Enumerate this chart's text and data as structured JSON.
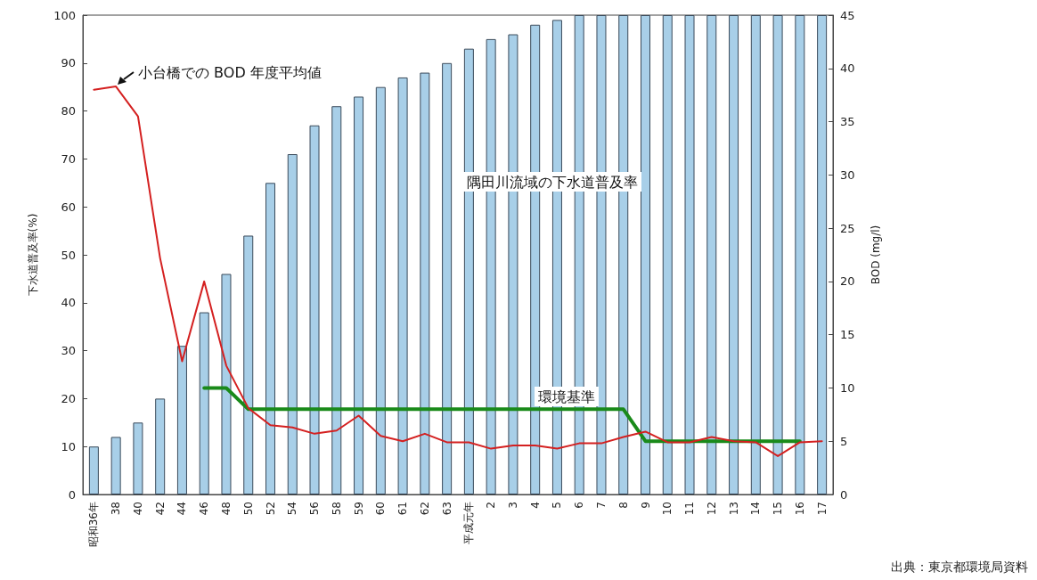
{
  "chart_data": {
    "type": "bar",
    "ylabel": "下水道普及率(%)",
    "y2label": "BOD (mg/l)",
    "categories": [
      "昭和36年",
      "38",
      "40",
      "42",
      "44",
      "46",
      "48",
      "50",
      "52",
      "54",
      "56",
      "58",
      "59",
      "60",
      "61",
      "62",
      "63",
      "平成元年",
      "2",
      "3",
      "4",
      "5",
      "6",
      "7",
      "8",
      "9",
      "10",
      "11",
      "12",
      "13",
      "14",
      "15",
      "16",
      "17"
    ],
    "series": [
      {
        "name": "隅田川流域の下水道普及率",
        "color": "#a8cfe8",
        "values": [
          10,
          12,
          15,
          20,
          31,
          38,
          46,
          54,
          65,
          71,
          77,
          81,
          83,
          85,
          87,
          88,
          90,
          93,
          95,
          96,
          98,
          99,
          100,
          100,
          100,
          100,
          100,
          100,
          100,
          100,
          100,
          100,
          100,
          100
        ]
      },
      {
        "name": "小台橋での BOD 年度平均値",
        "type": "line",
        "axis": "y2",
        "color": "#d42020",
        "values": [
          38,
          38.3,
          35.5,
          22.2,
          12.5,
          20,
          12.1,
          8.1,
          6.5,
          6.3,
          5.7,
          6,
          7.4,
          5.5,
          5,
          5.7,
          4.9,
          4.9,
          4.3,
          4.6,
          4.6,
          4.3,
          4.8,
          4.8,
          5.4,
          5.9,
          4.9,
          4.9,
          5.4,
          5,
          4.9,
          3.6,
          4.9,
          5
        ]
      },
      {
        "name": "環境基準",
        "type": "line",
        "axis": "y2",
        "color": "#1a8a1a",
        "values": [
          null,
          null,
          null,
          null,
          null,
          10,
          10,
          8,
          8,
          8,
          8,
          8,
          8,
          8,
          8,
          8,
          8,
          8,
          8,
          8,
          8,
          8,
          8,
          8,
          8,
          5,
          5,
          5,
          5,
          5,
          5,
          5,
          5,
          null
        ]
      }
    ],
    "ylim": [
      0,
      100
    ],
    "yticks": [
      0,
      10,
      20,
      30,
      40,
      50,
      60,
      70,
      80,
      90,
      100
    ],
    "y2lim": [
      0,
      45
    ],
    "y2ticks": [
      0,
      5,
      10,
      15,
      20,
      25,
      30,
      35,
      40,
      45
    ],
    "legend": false,
    "marker": "none",
    "line_style": "solid",
    "annotations": [
      "出典：東京都環境局資料"
    ]
  }
}
